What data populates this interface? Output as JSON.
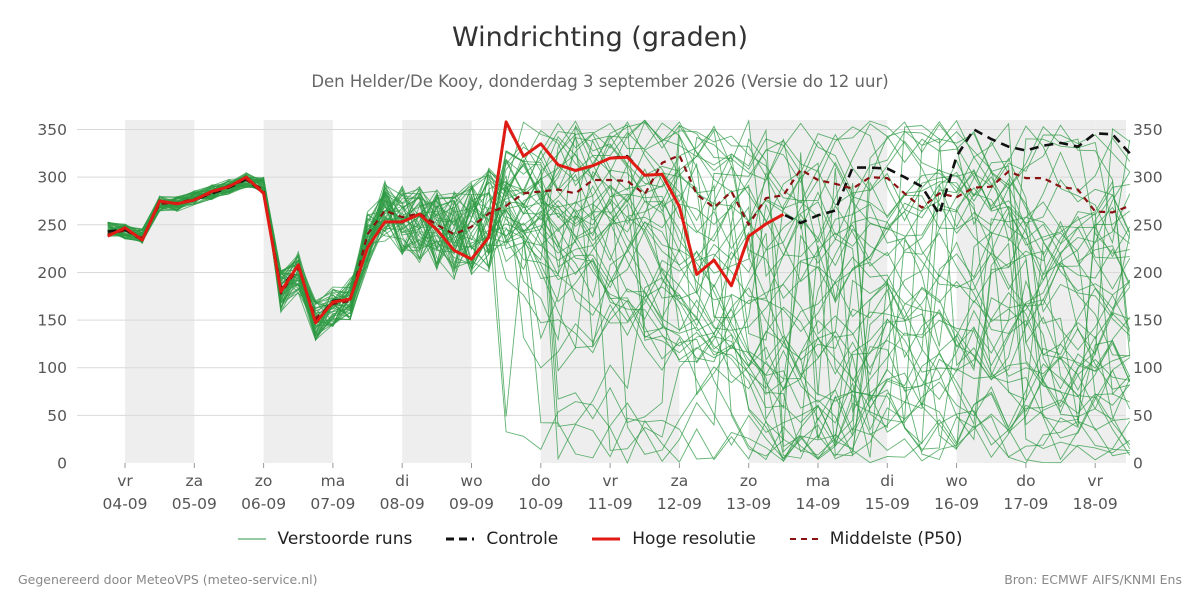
{
  "header": {
    "title": "Windrichting (graden)",
    "subtitle": "Den Helder/De Kooy, donderdag  3 september 2026 (Versie do 12 uur)"
  },
  "footer": {
    "left": "Gegenereerd door MeteoVPS (meteo-service.nl)",
    "right": "Bron: ECMWF AIFS/KNMI Ens"
  },
  "legend": [
    {
      "label": "Verstoorde runs",
      "color": "#2e9a43",
      "style": "thin"
    },
    {
      "label": "Controle",
      "color": "#111111",
      "style": "dashed"
    },
    {
      "label": "Hoge resolutie",
      "color": "#e01b14",
      "style": "solid"
    },
    {
      "label": "Middelste (P50)",
      "color": "#8b1212",
      "style": "dashed"
    }
  ],
  "chart_data": {
    "type": "line",
    "title": "Windrichting (graden)",
    "x_unit": "days since 2026-09-04 00:00",
    "xlim": [
      -0.7,
      14.5
    ],
    "ylim": [
      0,
      360
    ],
    "y_ticks": [
      0,
      50,
      100,
      150,
      200,
      250,
      300,
      350
    ],
    "grid": true,
    "legend_position": "bottom",
    "x_ticks": [
      {
        "day": "vr",
        "date": "04-09"
      },
      {
        "day": "za",
        "date": "05-09"
      },
      {
        "day": "zo",
        "date": "06-09"
      },
      {
        "day": "ma",
        "date": "07-09"
      },
      {
        "day": "di",
        "date": "08-09"
      },
      {
        "day": "wo",
        "date": "09-09"
      },
      {
        "day": "do",
        "date": "10-09"
      },
      {
        "day": "vr",
        "date": "11-09"
      },
      {
        "day": "za",
        "date": "12-09"
      },
      {
        "day": "zo",
        "date": "13-09"
      },
      {
        "day": "ma",
        "date": "14-09"
      },
      {
        "day": "di",
        "date": "15-09"
      },
      {
        "day": "wo",
        "date": "16-09"
      },
      {
        "day": "do",
        "date": "17-09"
      },
      {
        "day": "vr",
        "date": "18-09"
      }
    ],
    "weekend_shading": [
      [
        0,
        1
      ],
      [
        2,
        3
      ],
      [
        4,
        5
      ],
      [
        6,
        8
      ],
      [
        9,
        11
      ],
      [
        12,
        14
      ],
      [
        14,
        14.5
      ]
    ],
    "colors": {
      "ensemble": "#2e9a43",
      "control": "#111111",
      "hires": "#e01b14",
      "median": "#8b1212",
      "shade": "#eeeeee",
      "grid": "#d9d9d9"
    },
    "ensemble_members": 50,
    "ensemble_baseline": [
      [
        -0.25,
        245
      ],
      [
        0,
        243
      ],
      [
        0.25,
        238
      ],
      [
        0.5,
        272
      ],
      [
        0.75,
        272
      ],
      [
        1,
        278
      ],
      [
        1.25,
        284
      ],
      [
        1.5,
        290
      ],
      [
        1.75,
        297
      ],
      [
        2,
        292
      ],
      [
        2.25,
        180
      ],
      [
        2.5,
        200
      ],
      [
        2.75,
        150
      ],
      [
        3,
        165
      ],
      [
        3.25,
        172
      ],
      [
        3.5,
        235
      ],
      [
        3.75,
        265
      ],
      [
        4,
        255
      ],
      [
        4.25,
        250
      ],
      [
        4.5,
        245
      ],
      [
        4.75,
        240
      ],
      [
        5,
        245
      ],
      [
        5.25,
        255
      ]
    ],
    "series": [
      {
        "name": "Controle",
        "x": [
          -0.25,
          0,
          0.25,
          0.5,
          0.75,
          1,
          1.25,
          1.5,
          1.75,
          2,
          2.25,
          2.5,
          2.75,
          3,
          3.25,
          3.5,
          3.75,
          4,
          4.25,
          4.5,
          4.75,
          5,
          5.25,
          5.5,
          5.75,
          6,
          6.25,
          6.5,
          6.75,
          7,
          7.25,
          7.5,
          7.75,
          8,
          8.25,
          8.5,
          8.75,
          9,
          9.25,
          9.5,
          9.75,
          10,
          10.25,
          10.5,
          10.75,
          11,
          11.25,
          11.5,
          11.75,
          12,
          12.25,
          12.5,
          12.75,
          13,
          13.25,
          13.5,
          13.75,
          14,
          14.25,
          14.5
        ],
        "values": [
          243,
          245,
          234,
          275,
          272,
          276,
          283,
          289,
          298,
          283,
          183,
          207,
          148,
          170,
          172,
          226,
          253,
          253,
          261,
          245,
          223,
          214,
          237,
          357,
          322,
          335,
          313,
          307,
          312,
          320,
          322,
          302,
          303,
          269,
          198,
          213,
          186,
          238,
          251,
          261,
          252,
          260,
          265,
          310,
          310,
          309,
          300,
          290,
          261,
          322,
          350,
          340,
          332,
          328,
          333,
          336,
          332,
          346,
          345,
          325
        ]
      },
      {
        "name": "Hoge resolutie",
        "x": [
          -0.25,
          0,
          0.25,
          0.5,
          0.75,
          1,
          1.25,
          1.5,
          1.75,
          2,
          2.25,
          2.5,
          2.75,
          3,
          3.25,
          3.5,
          3.75,
          4,
          4.25,
          4.5,
          4.75,
          5,
          5.25,
          5.5,
          5.75,
          6,
          6.25,
          6.5,
          6.75,
          7,
          7.25,
          7.5,
          7.75,
          8,
          8.25,
          8.5,
          8.75,
          9,
          9.25,
          9.5
        ],
        "values": [
          238,
          247,
          234,
          275,
          272,
          276,
          285,
          290,
          300,
          283,
          180,
          208,
          147,
          169,
          172,
          226,
          253,
          253,
          261,
          245,
          223,
          214,
          237,
          358,
          322,
          335,
          313,
          307,
          312,
          320,
          321,
          302,
          303,
          269,
          198,
          213,
          186,
          238,
          251,
          261
        ]
      },
      {
        "name": "Middelste (P50)",
        "x": [
          -0.25,
          0,
          0.25,
          0.5,
          0.75,
          1,
          1.25,
          1.5,
          1.75,
          2,
          2.25,
          2.5,
          2.75,
          3,
          3.25,
          3.5,
          3.75,
          4,
          4.25,
          4.5,
          4.75,
          5,
          5.25,
          5.5,
          5.75,
          6,
          6.25,
          6.5,
          6.75,
          7,
          7.25,
          7.5,
          7.75,
          8,
          8.25,
          8.5,
          8.75,
          9,
          9.25,
          9.5,
          9.75,
          10,
          10.25,
          10.5,
          10.75,
          11,
          11.25,
          11.5,
          11.75,
          12,
          12.25,
          12.5,
          12.75,
          13,
          13.25,
          13.5,
          13.75,
          14,
          14.25,
          14.5
        ],
        "values": [
          240,
          244,
          236,
          272,
          273,
          277,
          283,
          291,
          297,
          287,
          178,
          205,
          152,
          167,
          170,
          240,
          265,
          258,
          262,
          250,
          240,
          248,
          262,
          270,
          283,
          285,
          287,
          283,
          297,
          297,
          296,
          282,
          315,
          323,
          282,
          268,
          285,
          250,
          278,
          281,
          308,
          297,
          293,
          288,
          300,
          299,
          283,
          268,
          283,
          279,
          289,
          290,
          306,
          299,
          299,
          290,
          287,
          264,
          263,
          270
        ]
      }
    ]
  }
}
